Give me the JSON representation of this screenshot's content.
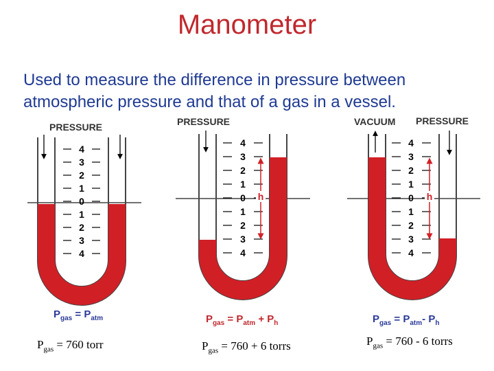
{
  "title": "Manometer",
  "description_line1": "Used to measure the difference in pressure between",
  "description_line2": "atmospheric pressure and that of a gas in a vessel.",
  "scale_labels": [
    "4",
    "3",
    "2",
    "1",
    "0",
    "1",
    "2",
    "3",
    "4"
  ],
  "h_label": "h",
  "colors": {
    "liquid": "#d11f26",
    "title": "#c0282d",
    "text": "#1f3a93",
    "formula_blue": "#2b3a99"
  },
  "panels": [
    {
      "top_labels": [
        "PRESSURE"
      ],
      "formula": {
        "p": "P",
        "p_sub": "gas",
        "eq": " = ",
        "rhs1": "P",
        "rhs1_sub": "atm",
        "op": "",
        "rhs2": "",
        "rhs2_sub": ""
      },
      "result": {
        "p": "P",
        "sub": "gas",
        "text": " = 760 torr"
      }
    },
    {
      "top_labels": [
        "PRESSURE"
      ],
      "formula": {
        "p": "P",
        "p_sub": "gas",
        "eq": " = ",
        "rhs1": "P",
        "rhs1_sub": "atm",
        "op": " + ",
        "rhs2": "P",
        "rhs2_sub": "h"
      },
      "result": {
        "p": "P",
        "sub": "gas",
        "text": " = 760 + 6 torrs"
      }
    },
    {
      "top_labels": [
        "VACUUM",
        "PRESSURE"
      ],
      "formula": {
        "p": "P",
        "p_sub": "gas",
        "eq": " = ",
        "rhs1": "P",
        "rhs1_sub": "atm",
        "op": "- ",
        "rhs2": "P",
        "rhs2_sub": "h"
      },
      "result": {
        "p": "P",
        "sub": "gas",
        "text": " = 760 - 6 torrs"
      }
    }
  ]
}
